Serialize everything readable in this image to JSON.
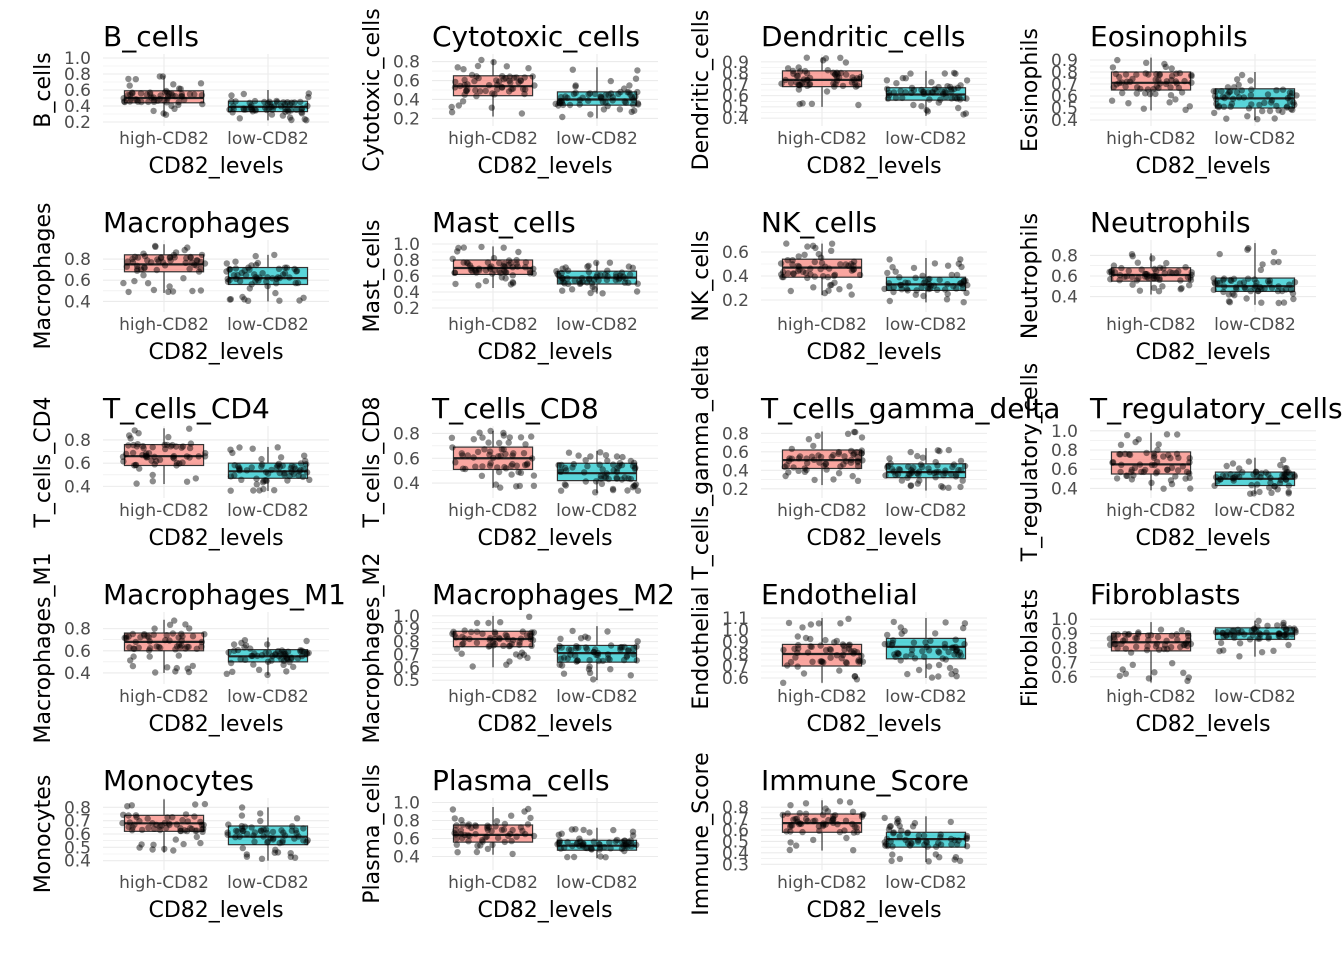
{
  "figure": {
    "x_axis_title": "CD82_levels",
    "group_labels": [
      "high-CD82",
      "low-CD82"
    ],
    "colors": {
      "high": "#F8766D",
      "low": "#00BFC4",
      "point": "#000000",
      "grid": "#EBEBEB",
      "text": "#4D4D4D"
    }
  },
  "chart_data": [
    {
      "type": "box",
      "title": "B_cells",
      "ylabel": "B_cells",
      "ylim": [
        0.15,
        1.05
      ],
      "ticks": [
        0.2,
        0.4,
        0.6,
        0.8,
        1.0
      ],
      "tick_labels": [
        "0.2",
        "0.4",
        "0.6",
        "0.8",
        "1.0"
      ],
      "groups": [
        {
          "name": "high-CD82",
          "q1": 0.44,
          "median": 0.5,
          "q3": 0.59,
          "low": 0.28,
          "high": 0.78
        },
        {
          "name": "low-CD82",
          "q1": 0.33,
          "median": 0.39,
          "q3": 0.46,
          "low": 0.22,
          "high": 0.6
        }
      ]
    },
    {
      "type": "box",
      "title": "Cytotoxic_cells",
      "ylabel": "Cytotoxic_cells",
      "ylim": [
        0.12,
        0.88
      ],
      "ticks": [
        0.2,
        0.4,
        0.6,
        0.8
      ],
      "tick_labels": [
        "0.2",
        "0.4",
        "0.6",
        "0.8"
      ],
      "groups": [
        {
          "name": "high-CD82",
          "q1": 0.44,
          "median": 0.54,
          "q3": 0.65,
          "low": 0.22,
          "high": 0.82
        },
        {
          "name": "low-CD82",
          "q1": 0.34,
          "median": 0.4,
          "q3": 0.48,
          "low": 0.2,
          "high": 0.74
        }
      ]
    },
    {
      "type": "box",
      "title": "Dendritic_cells",
      "ylabel": "Dendritic_cells",
      "ylim": [
        0.33,
        0.97
      ],
      "ticks": [
        0.4,
        0.5,
        0.6,
        0.7,
        0.8,
        0.9
      ],
      "tick_labels": [
        "0.4",
        "0.5",
        "0.6",
        "0.7",
        "0.8",
        "0.9"
      ],
      "groups": [
        {
          "name": "high-CD82",
          "q1": 0.68,
          "median": 0.74,
          "q3": 0.82,
          "low": 0.5,
          "high": 0.94
        },
        {
          "name": "low-CD82",
          "q1": 0.56,
          "median": 0.61,
          "q3": 0.67,
          "low": 0.42,
          "high": 0.82
        }
      ]
    },
    {
      "type": "box",
      "title": "Eosinophils",
      "ylabel": "Eosinophils",
      "ylim": [
        0.35,
        0.95
      ],
      "ticks": [
        0.4,
        0.5,
        0.6,
        0.7,
        0.8,
        0.9
      ],
      "tick_labels": [
        "0.4",
        "0.5",
        "0.6",
        "0.7",
        "0.8",
        "0.9"
      ],
      "groups": [
        {
          "name": "high-CD82",
          "q1": 0.65,
          "median": 0.71,
          "q3": 0.8,
          "low": 0.48,
          "high": 0.92
        },
        {
          "name": "low-CD82",
          "q1": 0.5,
          "median": 0.58,
          "q3": 0.66,
          "low": 0.4,
          "high": 0.8
        }
      ]
    },
    {
      "type": "box",
      "title": "Macrophages",
      "ylabel": "Macrophages",
      "ylim": [
        0.3,
        0.98
      ],
      "ticks": [
        0.4,
        0.6,
        0.8
      ],
      "tick_labels": [
        "0.4",
        "0.6",
        "0.8"
      ],
      "groups": [
        {
          "name": "high-CD82",
          "q1": 0.68,
          "median": 0.75,
          "q3": 0.84,
          "low": 0.48,
          "high": 0.94
        },
        {
          "name": "low-CD82",
          "q1": 0.56,
          "median": 0.62,
          "q3": 0.72,
          "low": 0.4,
          "high": 0.84
        }
      ]
    },
    {
      "type": "box",
      "title": "Mast_cells",
      "ylabel": "Mast_cells",
      "ylim": [
        0.15,
        1.05
      ],
      "ticks": [
        0.2,
        0.4,
        0.6,
        0.8,
        1.0
      ],
      "tick_labels": [
        "0.2",
        "0.4",
        "0.6",
        "0.8",
        "1.0"
      ],
      "groups": [
        {
          "name": "high-CD82",
          "q1": 0.62,
          "median": 0.7,
          "q3": 0.8,
          "low": 0.45,
          "high": 0.97
        },
        {
          "name": "low-CD82",
          "q1": 0.5,
          "median": 0.58,
          "q3": 0.66,
          "low": 0.38,
          "high": 0.78
        }
      ]
    },
    {
      "type": "box",
      "title": "NK_cells",
      "ylabel": "NK_cells",
      "ylim": [
        0.1,
        0.7
      ],
      "ticks": [
        0.2,
        0.4,
        0.6
      ],
      "tick_labels": [
        "0.2",
        "0.4",
        "0.6"
      ],
      "groups": [
        {
          "name": "high-CD82",
          "q1": 0.39,
          "median": 0.47,
          "q3": 0.54,
          "low": 0.24,
          "high": 0.67
        },
        {
          "name": "low-CD82",
          "q1": 0.28,
          "median": 0.33,
          "q3": 0.39,
          "low": 0.18,
          "high": 0.55
        }
      ]
    },
    {
      "type": "box",
      "title": "Neutrophils",
      "ylabel": "Neutrophils",
      "ylim": [
        0.25,
        0.95
      ],
      "ticks": [
        0.4,
        0.6,
        0.8
      ],
      "tick_labels": [
        "0.4",
        "0.6",
        "0.8"
      ],
      "groups": [
        {
          "name": "high-CD82",
          "q1": 0.55,
          "median": 0.61,
          "q3": 0.68,
          "low": 0.42,
          "high": 0.82
        },
        {
          "name": "low-CD82",
          "q1": 0.45,
          "median": 0.5,
          "q3": 0.58,
          "low": 0.32,
          "high": 0.92
        }
      ]
    },
    {
      "type": "box",
      "title": "T_cells_CD4",
      "ylabel": "T_cells_CD4",
      "ylim": [
        0.3,
        0.92
      ],
      "ticks": [
        0.4,
        0.6,
        0.8
      ],
      "tick_labels": [
        "0.4",
        "0.6",
        "0.8"
      ],
      "groups": [
        {
          "name": "high-CD82",
          "q1": 0.58,
          "median": 0.66,
          "q3": 0.76,
          "low": 0.42,
          "high": 0.9
        },
        {
          "name": "low-CD82",
          "q1": 0.47,
          "median": 0.53,
          "q3": 0.6,
          "low": 0.36,
          "high": 0.74
        }
      ]
    },
    {
      "type": "box",
      "title": "T_cells_CD8",
      "ylabel": "T_cells_CD8",
      "ylim": [
        0.28,
        0.86
      ],
      "ticks": [
        0.4,
        0.6,
        0.8
      ],
      "tick_labels": [
        "0.4",
        "0.6",
        "0.8"
      ],
      "groups": [
        {
          "name": "high-CD82",
          "q1": 0.51,
          "median": 0.6,
          "q3": 0.69,
          "low": 0.36,
          "high": 0.82
        },
        {
          "name": "low-CD82",
          "q1": 0.42,
          "median": 0.48,
          "q3": 0.56,
          "low": 0.32,
          "high": 0.66
        }
      ]
    },
    {
      "type": "box",
      "title": "T_cells_gamma_delta",
      "ylabel": "T_cells_gamma_delta",
      "ylim": [
        0.1,
        0.88
      ],
      "ticks": [
        0.2,
        0.4,
        0.6,
        0.8
      ],
      "tick_labels": [
        "0.2",
        "0.4",
        "0.6",
        "0.8"
      ],
      "groups": [
        {
          "name": "high-CD82",
          "q1": 0.42,
          "median": 0.51,
          "q3": 0.62,
          "low": 0.24,
          "high": 0.82
        },
        {
          "name": "low-CD82",
          "q1": 0.32,
          "median": 0.38,
          "q3": 0.47,
          "low": 0.18,
          "high": 0.64
        }
      ]
    },
    {
      "type": "box",
      "title": "T_regulatory_cells",
      "ylabel": "T_regulatory_cells",
      "ylim": [
        0.3,
        1.05
      ],
      "ticks": [
        0.4,
        0.6,
        0.8,
        1.0
      ],
      "tick_labels": [
        "0.4",
        "0.6",
        "0.8",
        "1.0"
      ],
      "groups": [
        {
          "name": "high-CD82",
          "q1": 0.55,
          "median": 0.65,
          "q3": 0.78,
          "low": 0.38,
          "high": 0.98
        },
        {
          "name": "low-CD82",
          "q1": 0.43,
          "median": 0.5,
          "q3": 0.57,
          "low": 0.34,
          "high": 0.72
        }
      ]
    },
    {
      "type": "box",
      "title": "Macrophages_M1",
      "ylabel": "Macrophages_M1",
      "ylim": [
        0.3,
        0.95
      ],
      "ticks": [
        0.4,
        0.6,
        0.8
      ],
      "tick_labels": [
        "0.4",
        "0.6",
        "0.8"
      ],
      "groups": [
        {
          "name": "high-CD82",
          "q1": 0.6,
          "median": 0.68,
          "q3": 0.76,
          "low": 0.4,
          "high": 0.88
        },
        {
          "name": "low-CD82",
          "q1": 0.5,
          "median": 0.55,
          "q3": 0.61,
          "low": 0.38,
          "high": 0.72
        }
      ]
    },
    {
      "type": "box",
      "title": "Macrophages_M2",
      "ylabel": "Macrophages_M2",
      "ylim": [
        0.47,
        1.03
      ],
      "ticks": [
        0.5,
        0.6,
        0.7,
        0.8,
        0.9,
        1.0
      ],
      "tick_labels": [
        "0.5",
        "0.6",
        "0.7",
        "0.8",
        "0.9",
        "1.0"
      ],
      "groups": [
        {
          "name": "high-CD82",
          "q1": 0.76,
          "median": 0.82,
          "q3": 0.88,
          "low": 0.6,
          "high": 1.0
        },
        {
          "name": "low-CD82",
          "q1": 0.64,
          "median": 0.71,
          "q3": 0.77,
          "low": 0.5,
          "high": 0.92
        }
      ]
    },
    {
      "type": "box",
      "title": "Endothelial",
      "ylabel": "Endothelial",
      "ylim": [
        0.55,
        1.15
      ],
      "ticks": [
        0.6,
        0.7,
        0.8,
        0.9,
        1.0,
        1.1
      ],
      "tick_labels": [
        "0.6",
        "0.7",
        "0.8",
        "0.9",
        "1.0",
        "1.1"
      ],
      "groups": [
        {
          "name": "high-CD82",
          "q1": 0.7,
          "median": 0.8,
          "q3": 0.88,
          "low": 0.56,
          "high": 1.1
        },
        {
          "name": "low-CD82",
          "q1": 0.76,
          "median": 0.86,
          "q3": 0.93,
          "low": 0.6,
          "high": 1.1
        }
      ]
    },
    {
      "type": "box",
      "title": "Fibroblasts",
      "ylabel": "Fibroblasts",
      "ylim": [
        0.55,
        1.05
      ],
      "ticks": [
        0.6,
        0.7,
        0.8,
        0.9,
        1.0
      ],
      "tick_labels": [
        "0.6",
        "0.7",
        "0.8",
        "0.9",
        "1.0"
      ],
      "groups": [
        {
          "name": "high-CD82",
          "q1": 0.78,
          "median": 0.84,
          "q3": 0.9,
          "low": 0.56,
          "high": 0.98
        },
        {
          "name": "low-CD82",
          "q1": 0.86,
          "median": 0.9,
          "q3": 0.94,
          "low": 0.74,
          "high": 0.99
        }
      ]
    },
    {
      "type": "box",
      "title": "Monocytes",
      "ylabel": "Monocytes",
      "ylim": [
        0.33,
        0.87
      ],
      "ticks": [
        0.4,
        0.5,
        0.6,
        0.7,
        0.8
      ],
      "tick_labels": [
        "0.4",
        "0.5",
        "0.6",
        "0.7",
        "0.8"
      ],
      "groups": [
        {
          "name": "high-CD82",
          "q1": 0.62,
          "median": 0.68,
          "q3": 0.74,
          "low": 0.46,
          "high": 0.86
        },
        {
          "name": "low-CD82",
          "q1": 0.52,
          "median": 0.58,
          "q3": 0.66,
          "low": 0.4,
          "high": 0.8
        }
      ]
    },
    {
      "type": "box",
      "title": "Plasma_cells",
      "ylabel": "Plasma_cells",
      "ylim": [
        0.25,
        1.05
      ],
      "ticks": [
        0.4,
        0.6,
        0.8,
        1.0
      ],
      "tick_labels": [
        "0.4",
        "0.6",
        "0.8",
        "1.0"
      ],
      "groups": [
        {
          "name": "high-CD82",
          "q1": 0.56,
          "median": 0.64,
          "q3": 0.75,
          "low": 0.42,
          "high": 0.95
        },
        {
          "name": "low-CD82",
          "q1": 0.47,
          "median": 0.52,
          "q3": 0.58,
          "low": 0.38,
          "high": 0.72
        }
      ]
    },
    {
      "type": "box",
      "title": "Immune_Score",
      "ylabel": "Immune_Score",
      "ylim": [
        0.25,
        0.88
      ],
      "ticks": [
        0.3,
        0.4,
        0.5,
        0.6,
        0.7,
        0.8
      ],
      "tick_labels": [
        "0.3",
        "0.4",
        "0.5",
        "0.6",
        "0.7",
        "0.8"
      ],
      "groups": [
        {
          "name": "high-CD82",
          "q1": 0.58,
          "median": 0.66,
          "q3": 0.74,
          "low": 0.42,
          "high": 0.86
        },
        {
          "name": "low-CD82",
          "q1": 0.45,
          "median": 0.52,
          "q3": 0.58,
          "low": 0.32,
          "high": 0.72
        }
      ]
    }
  ]
}
